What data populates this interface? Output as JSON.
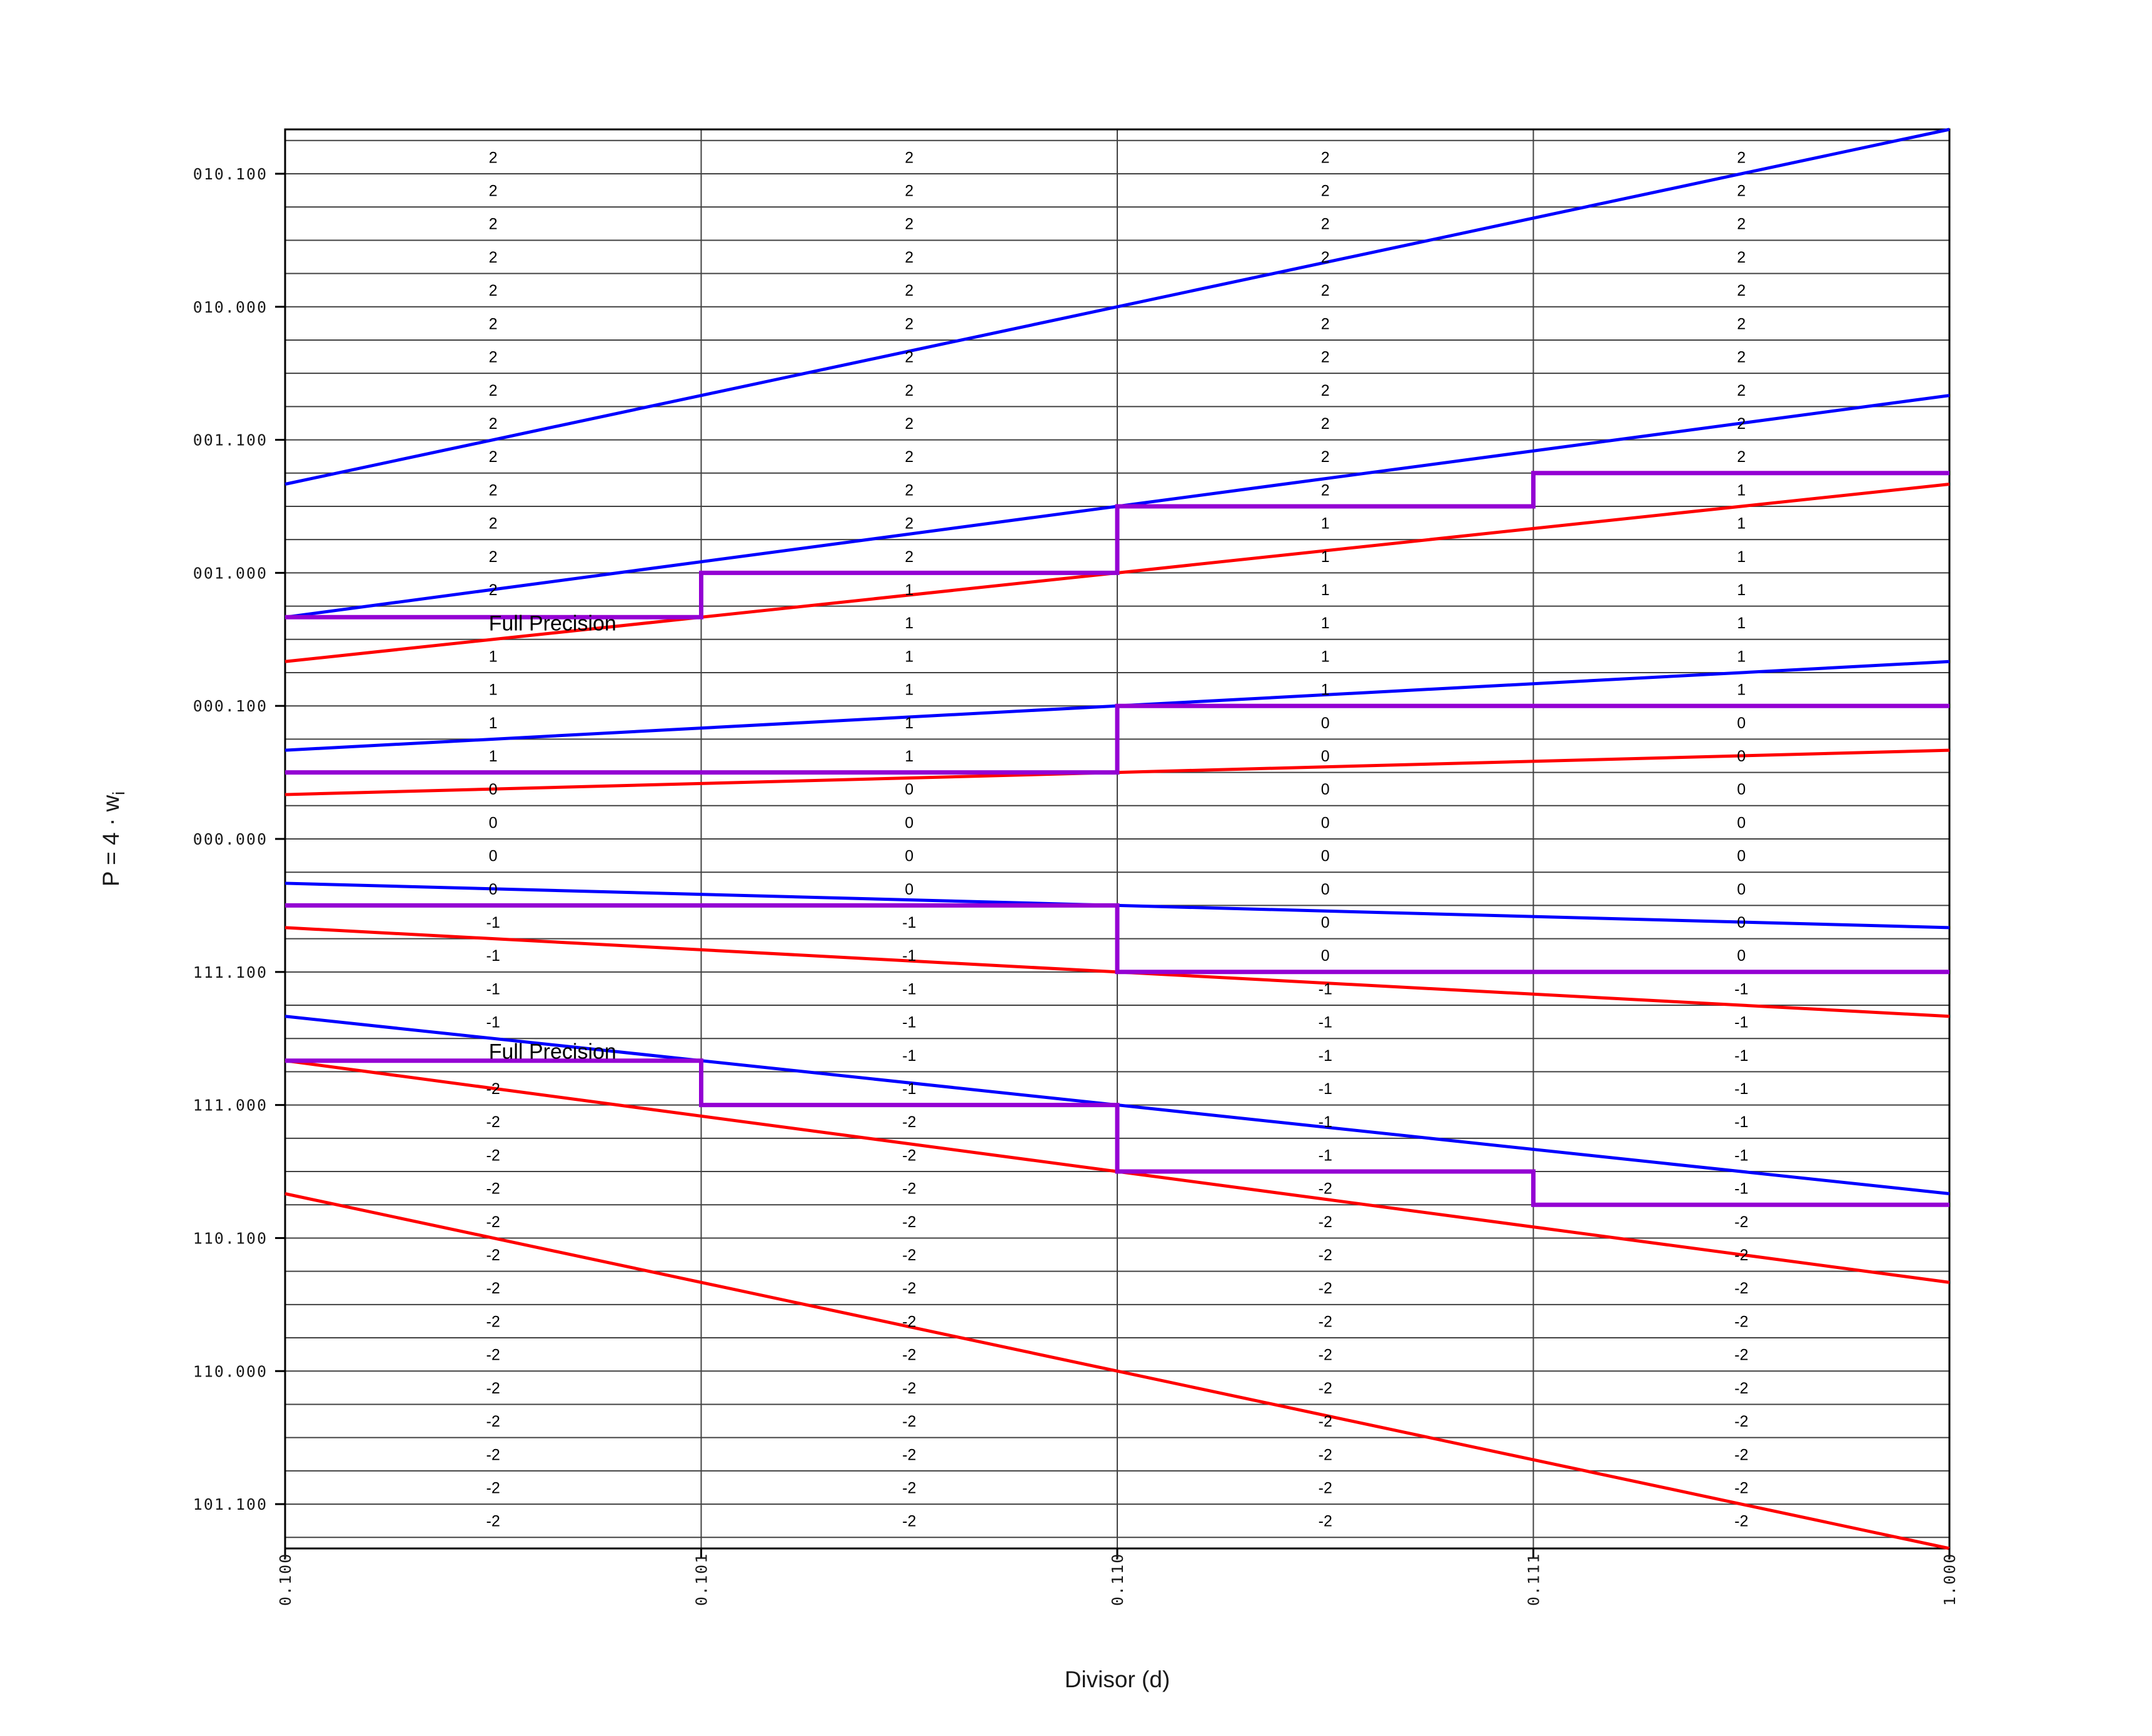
{
  "chart_data": {
    "type": "line",
    "title": "",
    "xlabel": "Divisor (d)",
    "ylabel": {
      "text": "P = 4 · w",
      "subscript": "i"
    },
    "xlim": [
      0.5,
      1.0
    ],
    "ylim": [
      -2.6666667,
      2.6666667
    ],
    "grid": {
      "y_min": -2.625,
      "y_max": 2.625,
      "y_step": 0.125,
      "x_lines": [
        0.625,
        0.75,
        0.875
      ],
      "grid_on": true
    },
    "x_ticks": [
      {
        "value": 0.5,
        "label": "0.100"
      },
      {
        "value": 0.625,
        "label": "0.101"
      },
      {
        "value": 0.75,
        "label": "0.110"
      },
      {
        "value": 0.875,
        "label": "0.111"
      },
      {
        "value": 1.0,
        "label": "1.000"
      }
    ],
    "y_ticks": [
      {
        "value": 2.5,
        "label": "010.100"
      },
      {
        "value": 2.0,
        "label": "010.000"
      },
      {
        "value": 1.5,
        "label": "001.100"
      },
      {
        "value": 1.0,
        "label": "001.000"
      },
      {
        "value": 0.5,
        "label": "000.100"
      },
      {
        "value": 0.0,
        "label": "000.000"
      },
      {
        "value": -0.5,
        "label": "111.100"
      },
      {
        "value": -1.0,
        "label": "111.000"
      },
      {
        "value": -1.5,
        "label": "110.100"
      },
      {
        "value": -2.0,
        "label": "110.000"
      },
      {
        "value": -2.5,
        "label": "101.100"
      }
    ],
    "series": [
      {
        "name": "upper-bound-digit-2",
        "color": "#0000ff",
        "slope": 2.6666667
      },
      {
        "name": "upper-bound-digit-1",
        "color": "#0000ff",
        "slope": 1.6666667
      },
      {
        "name": "upper-bound-digit-0",
        "color": "#0000ff",
        "slope": 0.6666667
      },
      {
        "name": "upper-bound-digit--1",
        "color": "#0000ff",
        "slope": -0.3333333
      },
      {
        "name": "upper-bound-digit--2",
        "color": "#0000ff",
        "slope": -1.3333333
      },
      {
        "name": "lower-bound-digit-2",
        "color": "#ff0000",
        "slope": 1.3333333
      },
      {
        "name": "lower-bound-digit-1",
        "color": "#ff0000",
        "slope": 0.3333333
      },
      {
        "name": "lower-bound-digit-0",
        "color": "#ff0000",
        "slope": -0.6666667
      },
      {
        "name": "lower-bound-digit--1",
        "color": "#ff0000",
        "slope": -1.6666667
      },
      {
        "name": "lower-bound-digit--2",
        "color": "#ff0000",
        "slope": -2.6666667
      }
    ],
    "staircases": [
      {
        "name": "threshold-m2",
        "color": "#9400d3",
        "points": [
          [
            0.5,
            0.8333333
          ],
          [
            0.625,
            0.8333333
          ],
          [
            0.625,
            1.0
          ],
          [
            0.75,
            1.0
          ],
          [
            0.75,
            1.25
          ],
          [
            0.875,
            1.25
          ],
          [
            0.875,
            1.375
          ],
          [
            1.0,
            1.375
          ]
        ]
      },
      {
        "name": "threshold-m1",
        "color": "#9400d3",
        "points": [
          [
            0.5,
            0.25
          ],
          [
            0.75,
            0.25
          ],
          [
            0.75,
            0.5
          ],
          [
            1.0,
            0.5
          ]
        ]
      },
      {
        "name": "threshold-m0",
        "color": "#9400d3",
        "points": [
          [
            0.5,
            -0.25
          ],
          [
            0.75,
            -0.25
          ],
          [
            0.75,
            -0.5
          ],
          [
            1.0,
            -0.5
          ]
        ]
      },
      {
        "name": "threshold-m-1",
        "color": "#9400d3",
        "points": [
          [
            0.5,
            -0.8333333
          ],
          [
            0.625,
            -0.8333333
          ],
          [
            0.625,
            -1.0
          ],
          [
            0.75,
            -1.0
          ],
          [
            0.75,
            -1.25
          ],
          [
            0.875,
            -1.25
          ],
          [
            0.875,
            -1.375
          ],
          [
            1.0,
            -1.375
          ]
        ]
      }
    ],
    "annotations": [
      {
        "text": "Full Precision",
        "x": 0.5625,
        "y": 0.8333333,
        "placement": "below-line"
      },
      {
        "text": "Full Precision",
        "x": 0.5625,
        "y": -0.8333333,
        "placement": "above-line"
      }
    ],
    "digit_grid": {
      "row_top": 2.625,
      "row_step": 0.125,
      "column_centers": [
        0.5625,
        0.6875,
        0.8125,
        0.9375
      ],
      "columns": [
        {
          "runs": [
            [
              "2",
              14
            ],
            [
              "",
              1
            ],
            [
              "1",
              4
            ],
            [
              "0",
              4
            ],
            [
              "-1",
              4
            ],
            [
              "",
              1
            ],
            [
              "-2",
              14
            ]
          ]
        },
        {
          "runs": [
            [
              "2",
              13
            ],
            [
              "1",
              6
            ],
            [
              "0",
              4
            ],
            [
              "-1",
              6
            ],
            [
              "-2",
              13
            ]
          ]
        },
        {
          "runs": [
            [
              "2",
              11
            ],
            [
              "1",
              6
            ],
            [
              "0",
              8
            ],
            [
              "-1",
              6
            ],
            [
              "-2",
              11
            ]
          ]
        },
        {
          "runs": [
            [
              "2",
              10
            ],
            [
              "1",
              7
            ],
            [
              "0",
              8
            ],
            [
              "-1",
              7
            ],
            [
              "-2",
              10
            ]
          ]
        }
      ]
    },
    "colors": {
      "blue": "#0000ff",
      "red": "#ff0000",
      "purple": "#9400d3",
      "grid": "#404040",
      "frame": "#000000",
      "text": "#000000",
      "tick_text": "#1a1a1a"
    },
    "legend": {
      "visible": false
    }
  }
}
